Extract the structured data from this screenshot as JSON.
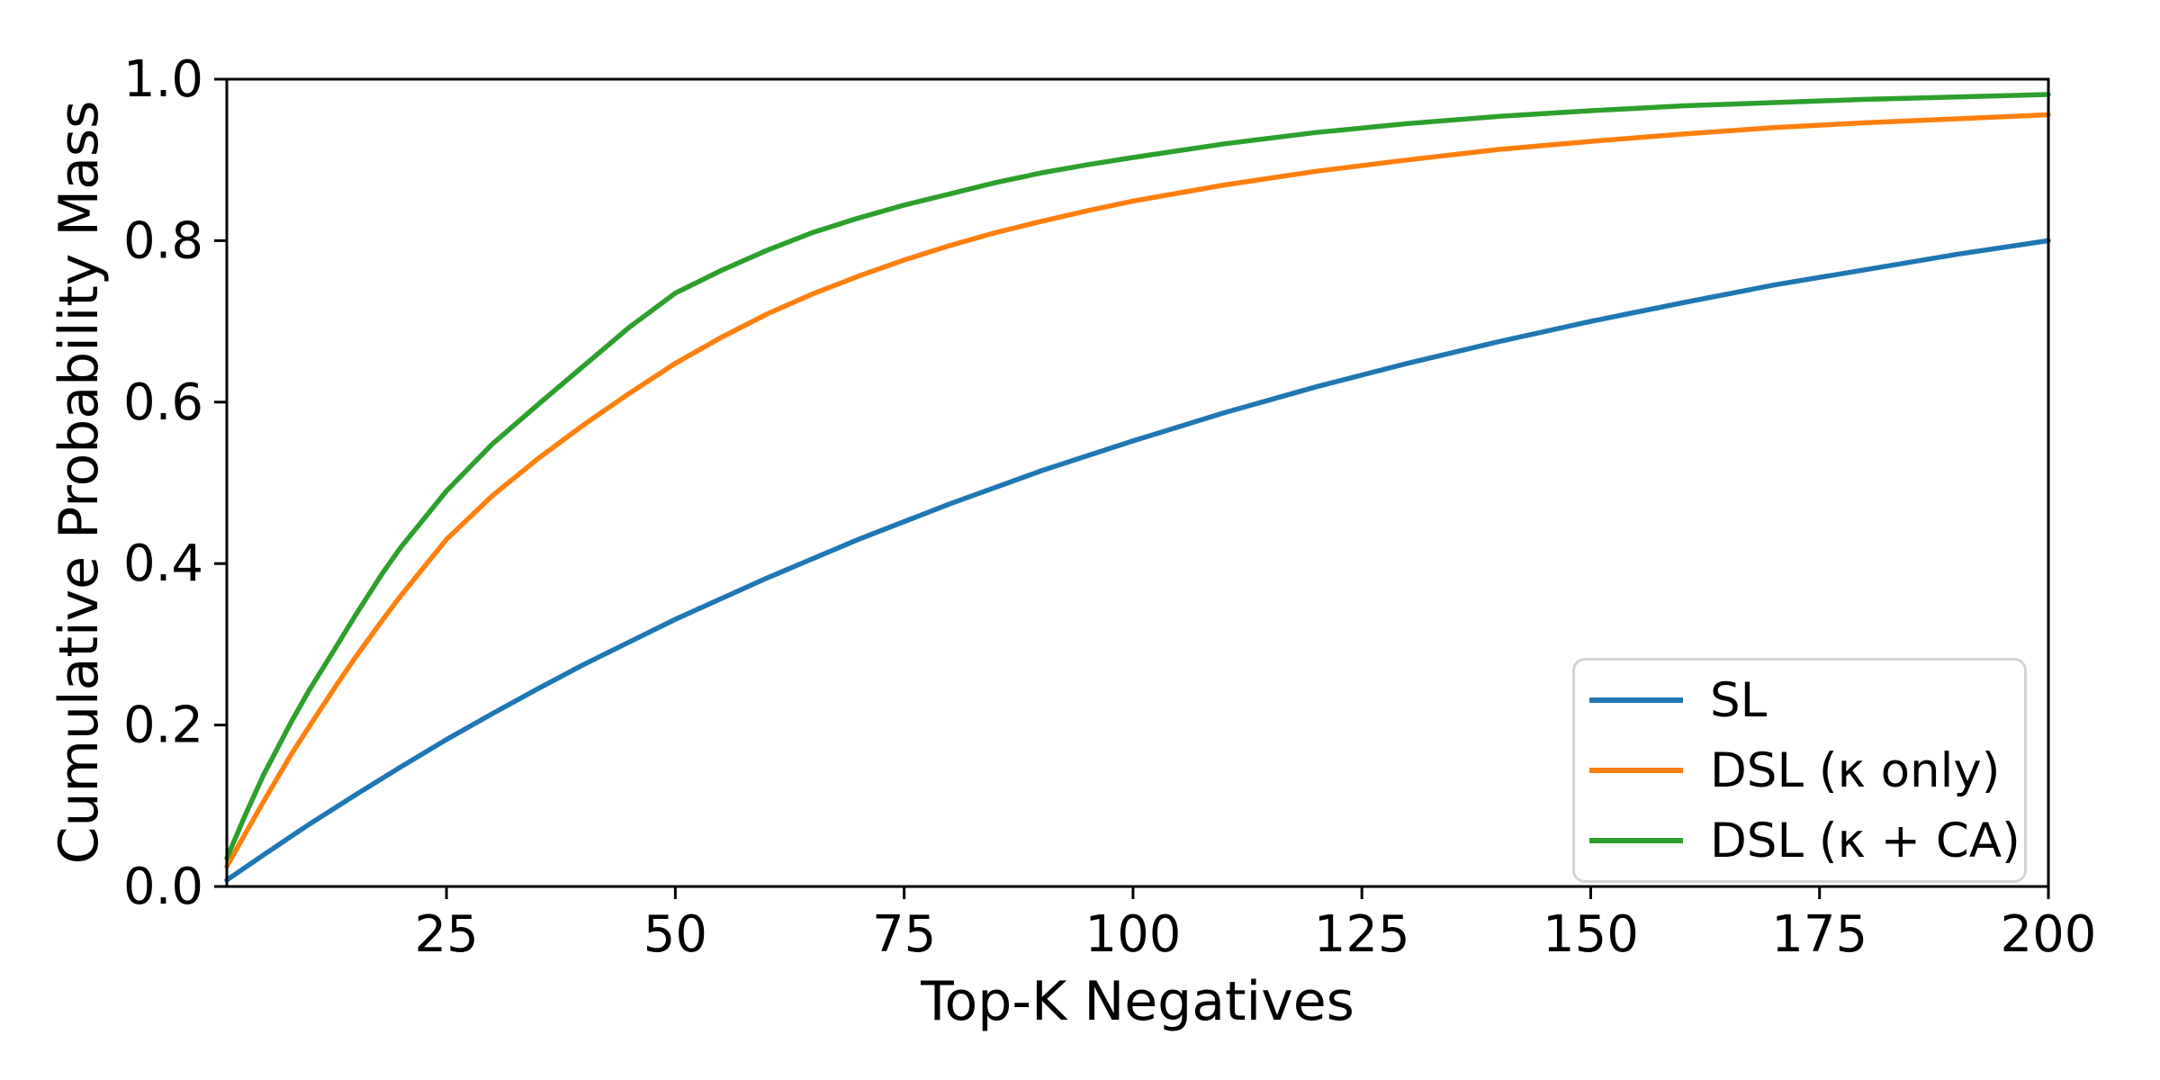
{
  "chart_data": {
    "type": "line",
    "title": "",
    "xlabel": "Top-K Negatives",
    "ylabel": "Cumulative Probability Mass",
    "xlim": [
      1,
      200
    ],
    "ylim": [
      0.0,
      1.0
    ],
    "grid": false,
    "background_color": "#ffffff",
    "axis_color": "#000000",
    "xticks": [
      25,
      50,
      75,
      100,
      125,
      150,
      175,
      200
    ],
    "xtick_labels": [
      "25",
      "50",
      "75",
      "100",
      "125",
      "150",
      "175",
      "200"
    ],
    "yticks": [
      0.0,
      0.2,
      0.4,
      0.6,
      0.8,
      1.0
    ],
    "ytick_labels": [
      "0.0",
      "0.2",
      "0.4",
      "0.6",
      "0.8",
      "1.0"
    ],
    "legend": {
      "position": "lower right",
      "border_color": "#d4d4d4"
    },
    "series": [
      {
        "name": "SL",
        "color": "#1f77b4",
        "x": [
          1,
          5,
          10,
          15,
          20,
          25,
          30,
          35,
          40,
          45,
          50,
          60,
          70,
          80,
          90,
          100,
          110,
          120,
          130,
          140,
          150,
          160,
          170,
          180,
          190,
          200
        ],
        "y": [
          0.008,
          0.039,
          0.077,
          0.113,
          0.148,
          0.182,
          0.214,
          0.245,
          0.275,
          0.303,
          0.331,
          0.382,
          0.43,
          0.474,
          0.515,
          0.552,
          0.587,
          0.619,
          0.648,
          0.675,
          0.7,
          0.723,
          0.745,
          0.764,
          0.783,
          0.8
        ]
      },
      {
        "name": "DSL (κ only)",
        "color": "#ff7f0e",
        "x": [
          1,
          3,
          5,
          8,
          10,
          13,
          15,
          18,
          20,
          25,
          30,
          35,
          40,
          45,
          50,
          55,
          60,
          65,
          70,
          75,
          80,
          85,
          90,
          95,
          100,
          110,
          120,
          130,
          140,
          150,
          160,
          170,
          180,
          190,
          200
        ],
        "y": [
          0.025,
          0.065,
          0.105,
          0.163,
          0.198,
          0.25,
          0.283,
          0.33,
          0.36,
          0.43,
          0.484,
          0.53,
          0.572,
          0.611,
          0.648,
          0.68,
          0.709,
          0.734,
          0.756,
          0.776,
          0.794,
          0.81,
          0.824,
          0.837,
          0.849,
          0.869,
          0.886,
          0.9,
          0.913,
          0.923,
          0.932,
          0.94,
          0.946,
          0.951,
          0.956
        ]
      },
      {
        "name": "DSL (κ + CA)",
        "color": "#2ca02c",
        "x": [
          1,
          3,
          5,
          8,
          10,
          13,
          15,
          18,
          20,
          25,
          30,
          35,
          40,
          45,
          50,
          55,
          60,
          65,
          70,
          75,
          80,
          85,
          90,
          95,
          100,
          110,
          120,
          130,
          140,
          150,
          160,
          170,
          180,
          190,
          200
        ],
        "y": [
          0.035,
          0.088,
          0.138,
          0.203,
          0.243,
          0.298,
          0.335,
          0.388,
          0.42,
          0.49,
          0.548,
          0.597,
          0.645,
          0.693,
          0.735,
          0.763,
          0.788,
          0.81,
          0.828,
          0.844,
          0.858,
          0.872,
          0.884,
          0.894,
          0.903,
          0.92,
          0.934,
          0.945,
          0.954,
          0.961,
          0.967,
          0.971,
          0.975,
          0.978,
          0.981
        ]
      }
    ]
  }
}
